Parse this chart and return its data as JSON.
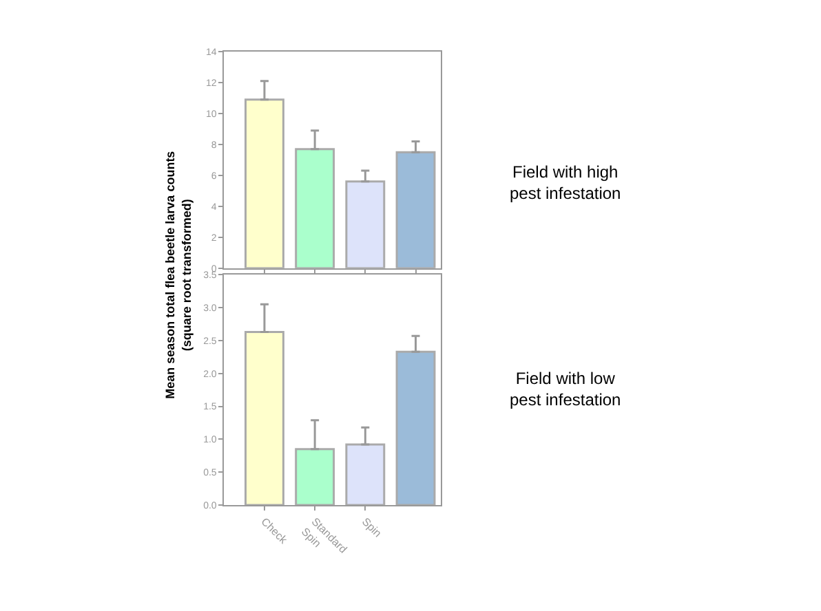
{
  "chart_data": [
    {
      "type": "bar",
      "ylabel": "Mean season total flea beetle larva counts\n(square root transformed)",
      "categories": [
        null,
        null,
        null,
        null
      ],
      "colors": [
        "#ffffcc",
        "#aaffcc",
        "#dde3fa",
        "#9bbbd9"
      ],
      "values": [
        10.9,
        7.7,
        5.6,
        7.5
      ],
      "errors": [
        [
          10.9,
          12.1
        ],
        [
          7.7,
          8.9
        ],
        [
          5.6,
          6.3
        ],
        [
          7.5,
          8.2
        ]
      ],
      "ylim": [
        0,
        14
      ],
      "yticks": [
        0,
        2,
        4,
        6,
        8,
        10,
        12,
        14
      ],
      "tick_labels": "y",
      "annotations": [
        "Field with high\npest infestation"
      ]
    },
    {
      "type": "bar",
      "categories": [
        "Check",
        "Standard\nSpin",
        "Spin",
        null
      ],
      "colors": [
        "#ffffcc",
        "#aaffcc",
        "#dde3fa",
        "#9bbbd9"
      ],
      "values": [
        2.63,
        0.85,
        0.92,
        2.33
      ],
      "errors": [
        [
          2.63,
          3.05
        ],
        [
          0.85,
          1.29
        ],
        [
          0.92,
          1.18
        ],
        [
          2.33,
          2.57
        ]
      ],
      "ylim": [
        0,
        3.5
      ],
      "yticks": [
        {
          "value": 0,
          "label": "0.0"
        },
        {
          "value": 0.5,
          "label": "0.5"
        },
        {
          "value": 1,
          "label": "1.0"
        },
        {
          "value": 1.5,
          "label": "1.5"
        },
        {
          "value": 2,
          "label": "2.0"
        },
        {
          "value": 2.5,
          "label": "2.5"
        },
        {
          "value": 3,
          "label": "3.0"
        },
        {
          "value": 3.5,
          "label": "3.5"
        }
      ],
      "annotations": [
        "Field with low\npest infestation"
      ]
    }
  ]
}
